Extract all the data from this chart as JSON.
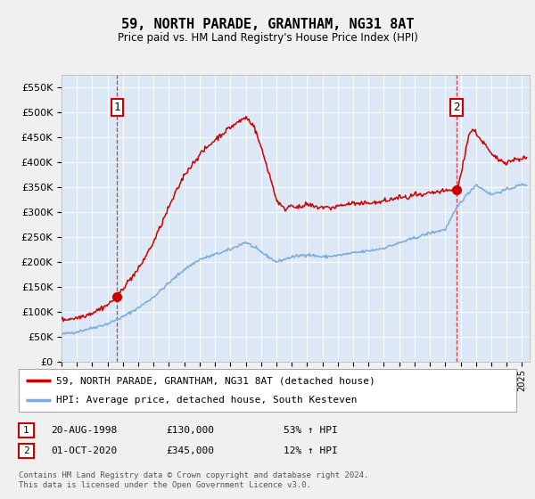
{
  "title": "59, NORTH PARADE, GRANTHAM, NG31 8AT",
  "subtitle": "Price paid vs. HM Land Registry's House Price Index (HPI)",
  "legend_line1": "59, NORTH PARADE, GRANTHAM, NG31 8AT (detached house)",
  "legend_line2": "HPI: Average price, detached house, South Kesteven",
  "note1_date": "20-AUG-1998",
  "note1_price": "£130,000",
  "note1_hpi": "53% ↑ HPI",
  "note2_date": "01-OCT-2020",
  "note2_price": "£345,000",
  "note2_hpi": "12% ↑ HPI",
  "footer": "Contains HM Land Registry data © Crown copyright and database right 2024.\nThis data is licensed under the Open Government Licence v3.0.",
  "red_color": "#cc0000",
  "blue_color": "#7aaadd",
  "fig_bg": "#f0f0f0",
  "plot_bg": "#dce8f5",
  "grid_color": "#ffffff",
  "sale1_x": 1998.63,
  "sale1_y": 130000,
  "sale2_x": 2020.75,
  "sale2_y": 345000,
  "ylim": [
    0,
    575000
  ],
  "ytick_vals": [
    0,
    50000,
    100000,
    150000,
    200000,
    250000,
    300000,
    350000,
    400000,
    450000,
    500000,
    550000
  ],
  "ytick_labels": [
    "£0",
    "£50K",
    "£100K",
    "£150K",
    "£200K",
    "£250K",
    "£300K",
    "£350K",
    "£400K",
    "£450K",
    "£500K",
    "£550K"
  ],
  "xmin": 1995.0,
  "xmax": 2025.5
}
